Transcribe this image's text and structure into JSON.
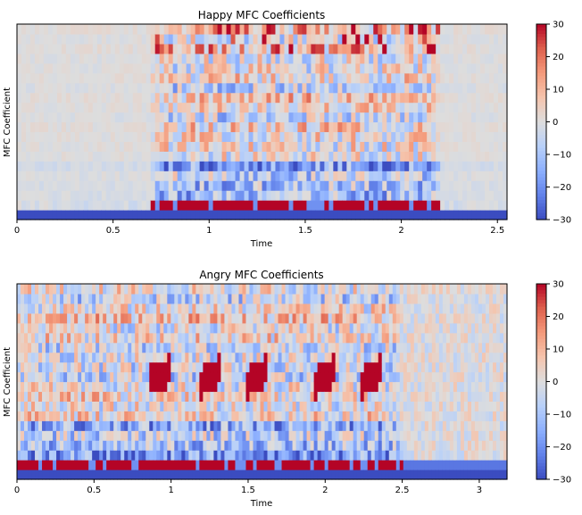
{
  "chart_data": [
    {
      "type": "heatmap",
      "title": "Happy MFC Coefficients",
      "xlabel": "Time",
      "ylabel": "MFC Coefficient",
      "xlim": [
        0,
        2.55
      ],
      "xticks": [
        0,
        0.5,
        1,
        1.5,
        2,
        2.5
      ],
      "xtick_labels": [
        "0",
        "0.5",
        "1",
        "1.5",
        "2",
        "2.5"
      ],
      "n_coefficients": 20,
      "n_frames": 110,
      "active_time_range": [
        0.7,
        2.2
      ],
      "colorbar": {
        "range": [
          -30,
          30
        ],
        "ticks": [
          30,
          20,
          10,
          0,
          -10,
          -20,
          -30
        ],
        "labels": [
          "30",
          "20",
          "10",
          "0",
          "−10",
          "−20",
          "−30"
        ],
        "colormap": "coolwarm"
      }
    },
    {
      "type": "heatmap",
      "title": "Angry MFC Coefficients",
      "xlabel": "Time",
      "ylabel": "MFC Coefficient",
      "xlim": [
        0,
        3.18
      ],
      "xticks": [
        0,
        0.5,
        1,
        1.5,
        2,
        2.5,
        3
      ],
      "xtick_labels": [
        "0",
        "0.5",
        "1",
        "1.5",
        "2",
        "2.5",
        "3"
      ],
      "n_coefficients": 20,
      "n_frames": 137,
      "active_time_range": [
        0.0,
        2.5
      ],
      "colorbar": {
        "range": [
          -30,
          30
        ],
        "ticks": [
          30,
          20,
          10,
          0,
          -10,
          -20,
          -30
        ],
        "labels": [
          "30",
          "20",
          "10",
          "0",
          "−10",
          "−20",
          "−30"
        ],
        "colormap": "coolwarm"
      }
    }
  ]
}
